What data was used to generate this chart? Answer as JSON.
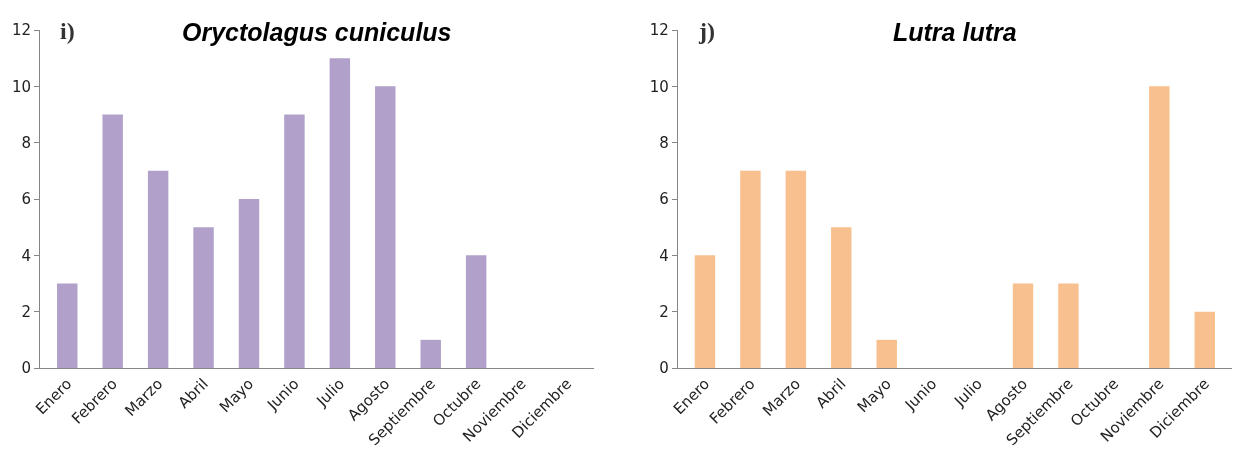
{
  "chart_data": [
    {
      "type": "bar",
      "title": "Oryctolagus cuniculus",
      "annotations": [
        "i)"
      ],
      "categories": [
        "Enero",
        "Febrero",
        "Marzo",
        "Abril",
        "Mayo",
        "Junio",
        "Julio",
        "Agosto",
        "Septiembre",
        "Octubre",
        "Noviembre",
        "Diciembre"
      ],
      "values": [
        3,
        9,
        7,
        5,
        6,
        9,
        11,
        10,
        1,
        4,
        0,
        0
      ],
      "color": "#b1a0c9",
      "ylim": [
        0,
        12
      ],
      "yticks": [
        0,
        2,
        4,
        6,
        8,
        10,
        12
      ]
    },
    {
      "type": "bar",
      "title": "Lutra lutra",
      "annotations": [
        "j)"
      ],
      "categories": [
        "Enero",
        "Febrero",
        "Marzo",
        "Abril",
        "Mayo",
        "Junio",
        "Julio",
        "Agosto",
        "Septiembre",
        "Octubre",
        "Noviembre",
        "Diciembre"
      ],
      "values": [
        4,
        7,
        7,
        5,
        1,
        0,
        0,
        3,
        3,
        0,
        10,
        2
      ],
      "color": "#f9c08f",
      "ylim": [
        0,
        12
      ],
      "yticks": [
        0,
        2,
        4,
        6,
        8,
        10,
        12
      ]
    }
  ]
}
